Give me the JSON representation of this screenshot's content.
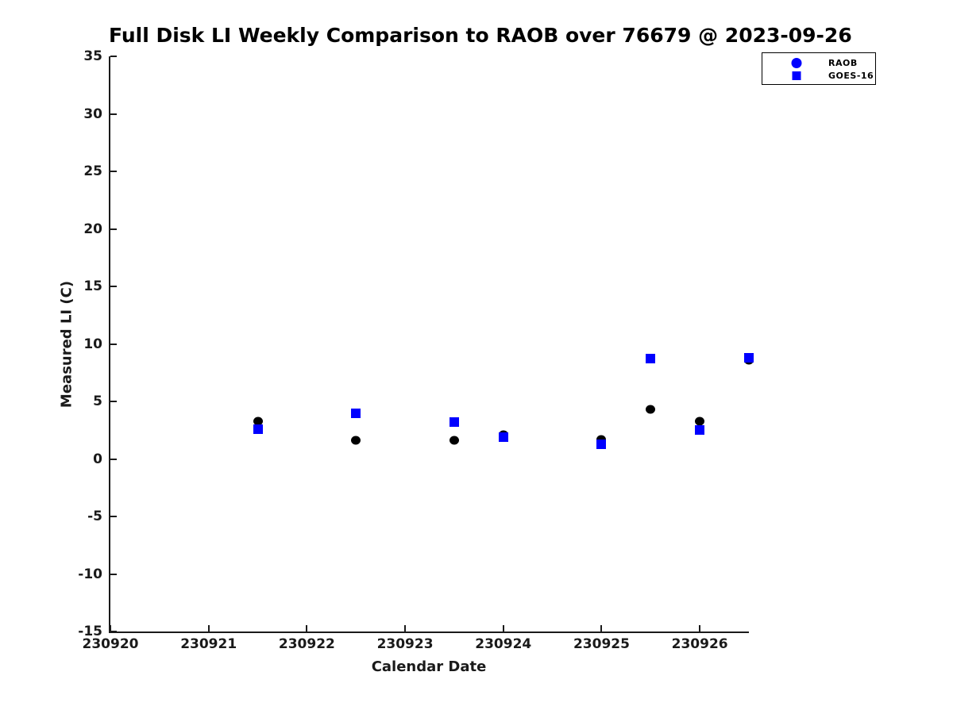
{
  "colors": {
    "background": "#ffffff",
    "axis": "#1a1a1a",
    "text": "#000000",
    "raob_marker": "#000000",
    "goes16_marker": "#0000ff",
    "legend_raob_marker": "#0000ff",
    "legend_goes16_marker": "#0000ff"
  },
  "legend": {
    "items": [
      {
        "label": "RAOB",
        "marker": "circle-icon"
      },
      {
        "label": "GOES-16",
        "marker": "square-icon"
      }
    ]
  },
  "chart_data": {
    "type": "scatter",
    "title": "Full Disk LI Weekly Comparison to RAOB over 76679 @ 2023-09-26",
    "xlabel": "Calendar Date",
    "ylabel": "Measured LI (C)",
    "xlim": [
      230920,
      230926.5
    ],
    "ylim": [
      -15,
      35
    ],
    "x_ticks": [
      230920,
      230921,
      230922,
      230923,
      230924,
      230925,
      230926
    ],
    "y_ticks": [
      -15,
      -10,
      -5,
      0,
      5,
      10,
      15,
      20,
      25,
      30,
      35
    ],
    "grid": false,
    "box": false,
    "legend_position": "top-right-outside",
    "series": [
      {
        "name": "RAOB",
        "marker": "circle",
        "marker_color": "#000000",
        "legend_marker_color": "#0000ff",
        "points": [
          {
            "x": 230921.5,
            "y": 3.3
          },
          {
            "x": 230922.5,
            "y": 1.6
          },
          {
            "x": 230923.5,
            "y": 1.6
          },
          {
            "x": 230924.0,
            "y": 2.1
          },
          {
            "x": 230925.0,
            "y": 1.7
          },
          {
            "x": 230925.5,
            "y": 4.3
          },
          {
            "x": 230926.0,
            "y": 3.3
          },
          {
            "x": 230926.5,
            "y": 8.6
          }
        ]
      },
      {
        "name": "GOES-16",
        "marker": "square",
        "marker_color": "#0000ff",
        "legend_marker_color": "#0000ff",
        "points": [
          {
            "x": 230921.5,
            "y": 2.6
          },
          {
            "x": 230922.5,
            "y": 4.0
          },
          {
            "x": 230923.5,
            "y": 3.2
          },
          {
            "x": 230924.0,
            "y": 1.9
          },
          {
            "x": 230925.0,
            "y": 1.3
          },
          {
            "x": 230925.5,
            "y": 8.7
          },
          {
            "x": 230926.0,
            "y": 2.5
          },
          {
            "x": 230926.5,
            "y": 8.8
          }
        ]
      }
    ]
  }
}
